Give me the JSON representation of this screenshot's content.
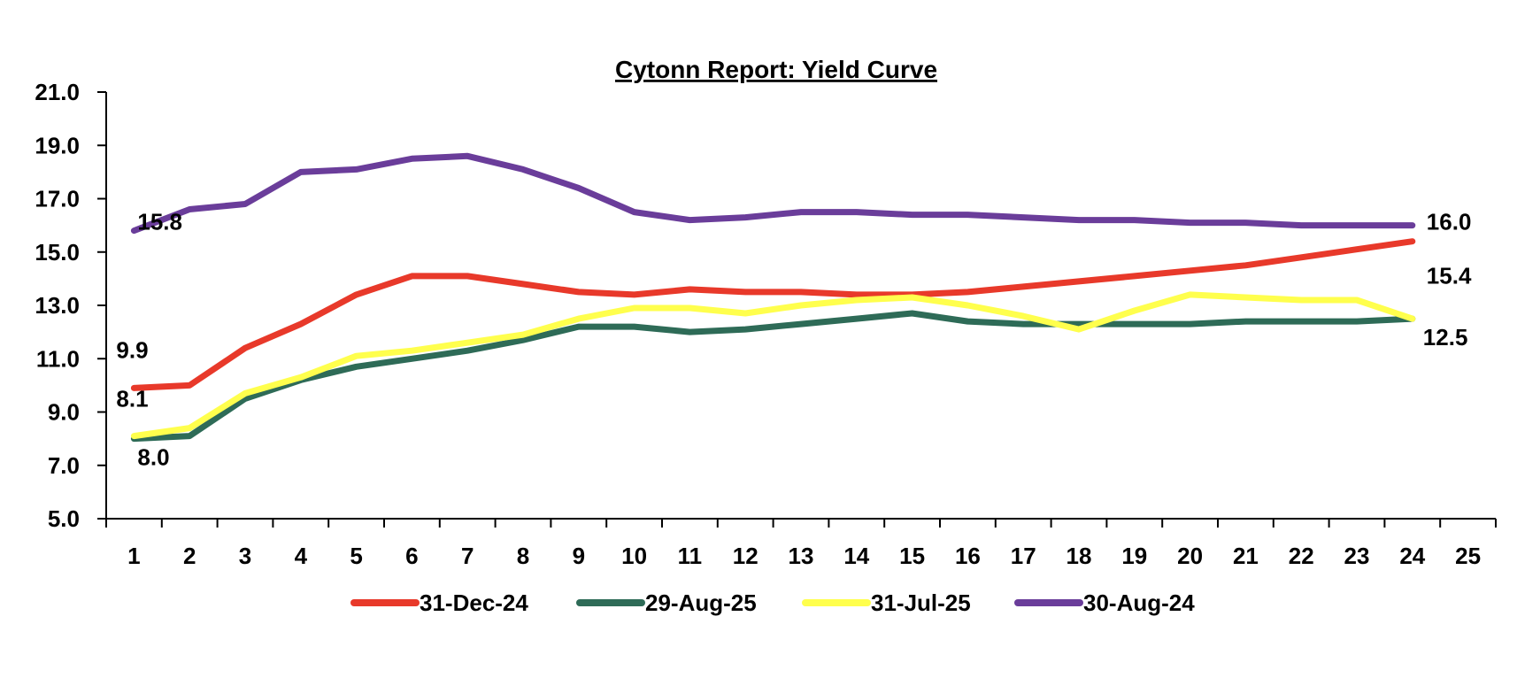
{
  "chart_data": {
    "type": "line",
    "title": "Cytonn Report: Yield Curve",
    "xlabel": "",
    "ylabel": "",
    "x_ticks": [
      1,
      2,
      3,
      4,
      5,
      6,
      7,
      8,
      9,
      10,
      11,
      12,
      13,
      14,
      15,
      16,
      17,
      18,
      19,
      20,
      21,
      22,
      23,
      24,
      25
    ],
    "y_ticks": [
      "5.0",
      "7.0",
      "9.0",
      "11.0",
      "13.0",
      "15.0",
      "17.0",
      "19.0",
      "21.0"
    ],
    "xlim": [
      0.5,
      25.5
    ],
    "ylim": [
      5,
      21
    ],
    "grid": false,
    "legend_position": "bottom",
    "series": [
      {
        "name": "31-Dec-24",
        "color": "#E8392A",
        "x": [
          1,
          2,
          3,
          4,
          5,
          6,
          7,
          8,
          9,
          10,
          11,
          12,
          13,
          14,
          15,
          16,
          17,
          18,
          19,
          20,
          21,
          22,
          23,
          24
        ],
        "values": [
          9.9,
          10.0,
          11.4,
          12.3,
          13.4,
          14.1,
          14.1,
          13.8,
          13.5,
          13.4,
          13.6,
          13.5,
          13.5,
          13.4,
          13.4,
          13.5,
          13.7,
          13.9,
          14.1,
          14.3,
          14.5,
          14.8,
          15.1,
          15.4
        ]
      },
      {
        "name": "29-Aug-25",
        "color": "#2E6B57",
        "x": [
          1,
          2,
          3,
          4,
          5,
          6,
          7,
          8,
          9,
          10,
          11,
          12,
          13,
          14,
          15,
          16,
          17,
          18,
          19,
          20,
          21,
          22,
          23,
          24
        ],
        "values": [
          8.0,
          8.1,
          9.5,
          10.2,
          10.7,
          11.0,
          11.3,
          11.7,
          12.2,
          12.2,
          12.0,
          12.1,
          12.3,
          12.5,
          12.7,
          12.4,
          12.3,
          12.3,
          12.3,
          12.3,
          12.4,
          12.4,
          12.4,
          12.5
        ]
      },
      {
        "name": "31-Jul-25",
        "color": "#FFFF4D",
        "x": [
          1,
          2,
          3,
          4,
          5,
          6,
          7,
          8,
          9,
          10,
          11,
          12,
          13,
          14,
          15,
          16,
          17,
          18,
          19,
          20,
          21,
          22,
          23,
          24
        ],
        "values": [
          8.1,
          8.4,
          9.7,
          10.3,
          11.1,
          11.3,
          11.6,
          11.9,
          12.5,
          12.9,
          12.9,
          12.7,
          13.0,
          13.2,
          13.3,
          13.0,
          12.6,
          12.1,
          12.8,
          13.4,
          13.3,
          13.2,
          13.2,
          12.5
        ]
      },
      {
        "name": "30-Aug-24",
        "color": "#6A3D9A",
        "x": [
          1,
          2,
          3,
          4,
          5,
          6,
          7,
          8,
          9,
          10,
          11,
          12,
          13,
          14,
          15,
          16,
          17,
          18,
          19,
          20,
          21,
          22,
          23,
          24
        ],
        "values": [
          15.8,
          16.6,
          16.8,
          18.0,
          18.1,
          18.5,
          18.6,
          18.1,
          17.4,
          16.5,
          16.2,
          16.3,
          16.5,
          16.5,
          16.4,
          16.4,
          16.3,
          16.2,
          16.2,
          16.1,
          16.1,
          16.0,
          16.0,
          16.0
        ]
      }
    ],
    "data_labels": [
      {
        "text": "15.8",
        "x": 1,
        "y": 15.8,
        "series": "30-Aug-24"
      },
      {
        "text": "9.9",
        "x": 1,
        "y": 9.9,
        "series": "31-Dec-24"
      },
      {
        "text": "8.1",
        "x": 1,
        "y": 8.1,
        "series": "31-Jul-25"
      },
      {
        "text": "8.0",
        "x": 1,
        "y": 8.0,
        "series": "29-Aug-25"
      },
      {
        "text": "16.0",
        "x": 24,
        "y": 16.0,
        "series": "30-Aug-24"
      },
      {
        "text": "15.4",
        "x": 24,
        "y": 15.4,
        "series": "31-Dec-24"
      },
      {
        "text": "12.5",
        "x": 24,
        "y": 12.5,
        "series": "29-Aug-25"
      }
    ]
  }
}
